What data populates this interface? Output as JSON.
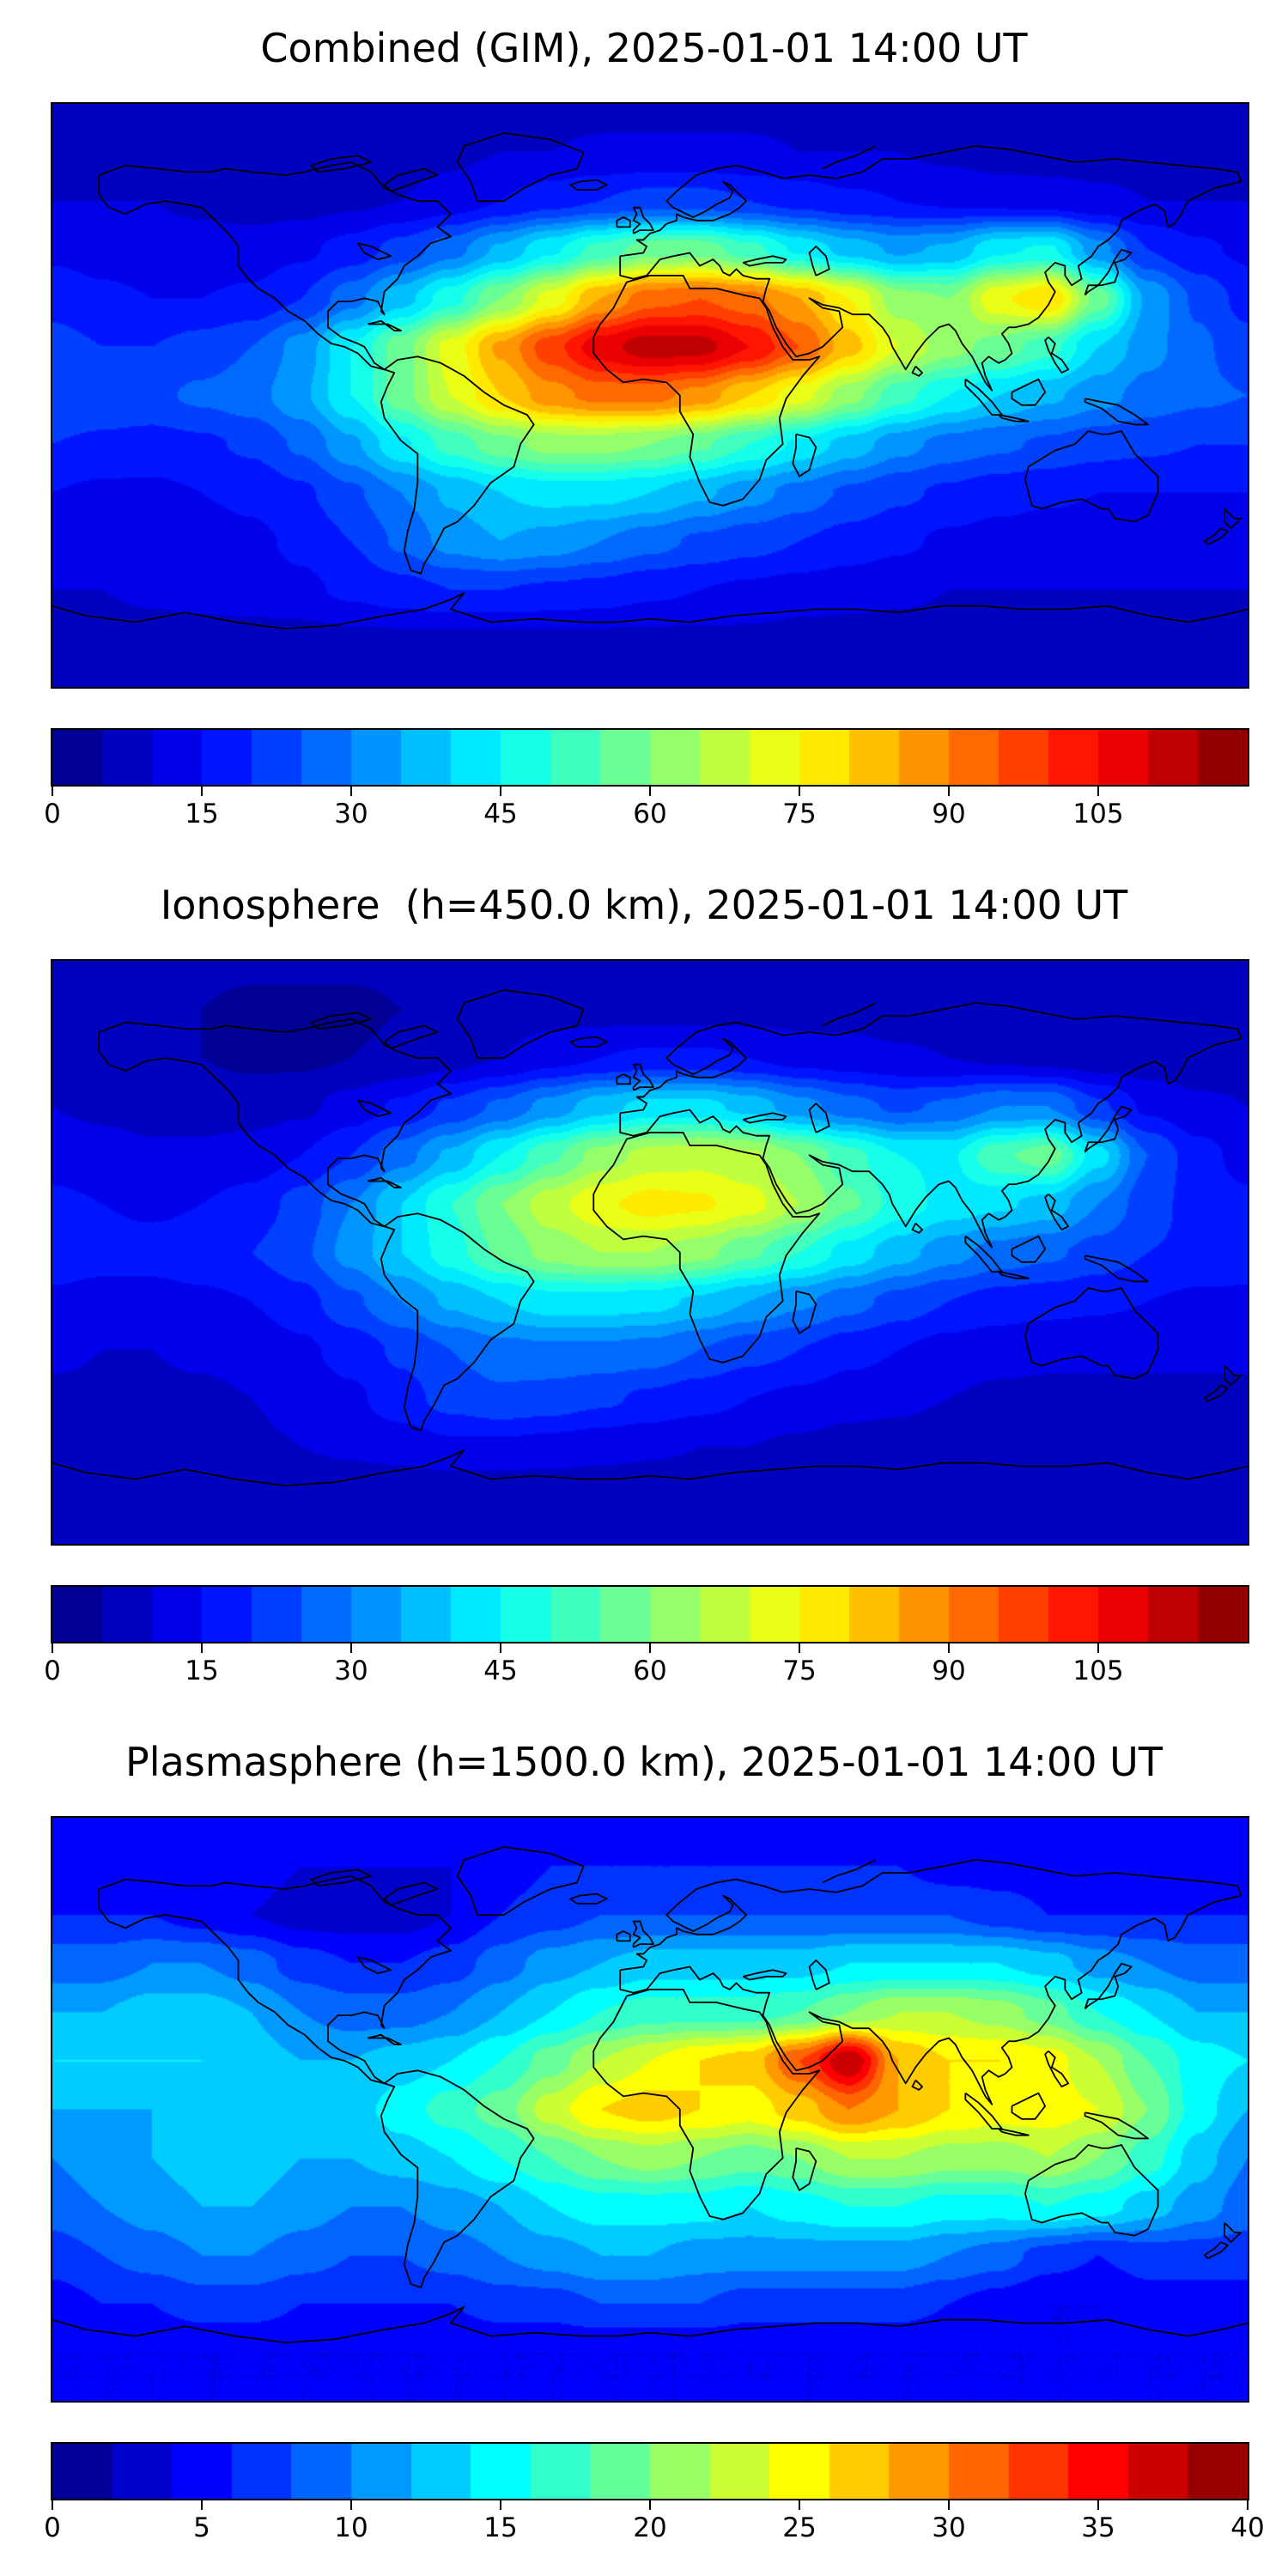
{
  "figure": {
    "background": "#ffffff",
    "text_color": "#000000",
    "frame_color": "#000000"
  },
  "chart_data": [
    {
      "type": "heatmap",
      "title": "Combined (GIM), 2025-01-01 14:00 UT",
      "xlabel": "",
      "ylabel": "",
      "projection": "equirectangular",
      "colormap": "jet",
      "grid": false,
      "vmin": 0,
      "vmax": 120,
      "level_step": 5,
      "colorbar_ticks": [
        0,
        15,
        30,
        45,
        60,
        75,
        90,
        105
      ],
      "lon_range": [
        -180,
        180
      ],
      "lat_range": [
        -90,
        90
      ],
      "lons": [
        -180,
        -165,
        -150,
        -135,
        -120,
        -105,
        -90,
        -75,
        -60,
        -45,
        -30,
        -15,
        0,
        15,
        30,
        45,
        60,
        75,
        90,
        105,
        120,
        135,
        150,
        165,
        180
      ],
      "lats": [
        90,
        75,
        60,
        45,
        30,
        15,
        0,
        -15,
        -30,
        -45,
        -60,
        -75,
        -90
      ],
      "values": [
        [
          8,
          8,
          8,
          8,
          8,
          8,
          8,
          8,
          8,
          8,
          8,
          8,
          8,
          8,
          8,
          8,
          8,
          8,
          8,
          8,
          8,
          8,
          8,
          8,
          8
        ],
        [
          8,
          8,
          8,
          8,
          8,
          8,
          8,
          8,
          9,
          10,
          10,
          11,
          11,
          11,
          11,
          10,
          10,
          10,
          9,
          8,
          8,
          8,
          8,
          8,
          8
        ],
        [
          10,
          10,
          10,
          9,
          8,
          8,
          9,
          10,
          12,
          15,
          18,
          20,
          22,
          22,
          20,
          18,
          16,
          15,
          14,
          13,
          12,
          11,
          10,
          10,
          10
        ],
        [
          14,
          13,
          12,
          12,
          12,
          14,
          17,
          22,
          28,
          36,
          44,
          52,
          58,
          58,
          52,
          44,
          38,
          34,
          36,
          44,
          46,
          32,
          20,
          16,
          14
        ],
        [
          18,
          16,
          15,
          15,
          16,
          20,
          28,
          38,
          48,
          60,
          72,
          85,
          93,
          95,
          92,
          85,
          75,
          62,
          60,
          74,
          80,
          58,
          34,
          24,
          18
        ],
        [
          22,
          20,
          20,
          22,
          25,
          32,
          45,
          58,
          72,
          86,
          98,
          108,
          113,
          112,
          105,
          95,
          82,
          70,
          62,
          58,
          52,
          40,
          32,
          26,
          22
        ],
        [
          25,
          24,
          24,
          26,
          28,
          34,
          45,
          58,
          70,
          80,
          88,
          92,
          92,
          88,
          80,
          72,
          62,
          52,
          45,
          40,
          36,
          32,
          28,
          26,
          25
        ],
        [
          20,
          19,
          18,
          19,
          21,
          26,
          34,
          44,
          52,
          58,
          62,
          62,
          60,
          56,
          50,
          44,
          38,
          32,
          28,
          26,
          24,
          22,
          21,
          20,
          20
        ],
        [
          15,
          14,
          14,
          15,
          16,
          19,
          24,
          30,
          36,
          40,
          42,
          42,
          40,
          36,
          32,
          28,
          24,
          21,
          19,
          17,
          16,
          15,
          15,
          15,
          15
        ],
        [
          12,
          12,
          12,
          13,
          14,
          16,
          20,
          26,
          32,
          35,
          33,
          30,
          27,
          24,
          22,
          20,
          18,
          16,
          14,
          13,
          12,
          12,
          12,
          12,
          12
        ],
        [
          10,
          10,
          11,
          12,
          13,
          14,
          16,
          18,
          20,
          20,
          19,
          18,
          16,
          15,
          14,
          13,
          12,
          11,
          10,
          10,
          10,
          10,
          10,
          10,
          10
        ],
        [
          8,
          8,
          8,
          8,
          8,
          8,
          9,
          9,
          9,
          9,
          9,
          9,
          9,
          9,
          9,
          8,
          8,
          8,
          8,
          8,
          8,
          8,
          8,
          8,
          8
        ],
        [
          8,
          8,
          8,
          8,
          8,
          8,
          8,
          8,
          8,
          8,
          8,
          8,
          8,
          8,
          8,
          8,
          8,
          8,
          8,
          8,
          8,
          8,
          8,
          8,
          8
        ]
      ]
    },
    {
      "type": "heatmap",
      "title": "Ionosphere  (h=450.0 km), 2025-01-01 14:00 UT",
      "xlabel": "",
      "ylabel": "",
      "projection": "equirectangular",
      "colormap": "jet",
      "grid": false,
      "vmin": 0,
      "vmax": 120,
      "level_step": 5,
      "colorbar_ticks": [
        0,
        15,
        30,
        45,
        60,
        75,
        90,
        105
      ],
      "lon_range": [
        -180,
        180
      ],
      "lat_range": [
        -90,
        90
      ],
      "lons": [
        -180,
        -165,
        -150,
        -135,
        -120,
        -105,
        -90,
        -75,
        -60,
        -45,
        -30,
        -15,
        0,
        15,
        30,
        45,
        60,
        75,
        90,
        105,
        120,
        135,
        150,
        165,
        180
      ],
      "lats": [
        90,
        75,
        60,
        45,
        30,
        15,
        0,
        -15,
        -30,
        -45,
        -60,
        -75,
        -90
      ],
      "values": [
        [
          6,
          6,
          6,
          6,
          6,
          6,
          6,
          6,
          6,
          6,
          6,
          6,
          6,
          6,
          6,
          6,
          6,
          6,
          6,
          6,
          6,
          6,
          6,
          6,
          6
        ],
        [
          6,
          6,
          6,
          5,
          4,
          4,
          4,
          5,
          6,
          7,
          8,
          8,
          8,
          8,
          8,
          8,
          8,
          7,
          6,
          6,
          5,
          5,
          5,
          6,
          6
        ],
        [
          8,
          7,
          6,
          5,
          4,
          4,
          5,
          6,
          8,
          10,
          13,
          15,
          16,
          16,
          15,
          13,
          12,
          11,
          10,
          9,
          8,
          7,
          7,
          7,
          8
        ],
        [
          10,
          9,
          8,
          8,
          8,
          9,
          12,
          16,
          21,
          26,
          32,
          38,
          42,
          42,
          38,
          32,
          27,
          24,
          26,
          30,
          30,
          21,
          14,
          11,
          10
        ],
        [
          13,
          12,
          11,
          11,
          12,
          15,
          20,
          28,
          36,
          45,
          54,
          62,
          67,
          68,
          66,
          60,
          52,
          45,
          44,
          54,
          58,
          42,
          25,
          17,
          13
        ],
        [
          16,
          15,
          14,
          15,
          17,
          22,
          30,
          40,
          50,
          60,
          68,
          74,
          77,
          76,
          72,
          65,
          56,
          48,
          43,
          41,
          38,
          30,
          22,
          18,
          16
        ],
        [
          18,
          17,
          17,
          18,
          20,
          24,
          32,
          40,
          48,
          56,
          62,
          65,
          65,
          62,
          56,
          50,
          43,
          37,
          32,
          28,
          26,
          23,
          20,
          19,
          18
        ],
        [
          14,
          13,
          13,
          14,
          15,
          18,
          24,
          30,
          36,
          40,
          43,
          43,
          42,
          39,
          35,
          31,
          27,
          23,
          20,
          18,
          17,
          16,
          15,
          14,
          14
        ],
        [
          11,
          10,
          10,
          11,
          12,
          14,
          17,
          21,
          25,
          28,
          29,
          29,
          28,
          25,
          22,
          20,
          17,
          15,
          13,
          12,
          11,
          11,
          11,
          11,
          11
        ],
        [
          9,
          9,
          9,
          9,
          10,
          12,
          14,
          18,
          22,
          24,
          23,
          21,
          19,
          17,
          15,
          14,
          12,
          11,
          10,
          9,
          9,
          9,
          9,
          9,
          9
        ],
        [
          7,
          7,
          8,
          8,
          9,
          10,
          11,
          12,
          14,
          14,
          13,
          12,
          11,
          10,
          10,
          9,
          8,
          8,
          7,
          6,
          6,
          6,
          6,
          7,
          7
        ],
        [
          6,
          6,
          6,
          6,
          6,
          6,
          6,
          6,
          6,
          6,
          6,
          6,
          6,
          6,
          6,
          6,
          6,
          6,
          5,
          5,
          5,
          5,
          5,
          6,
          6
        ],
        [
          6,
          6,
          6,
          6,
          6,
          6,
          6,
          6,
          6,
          6,
          6,
          6,
          6,
          6,
          6,
          6,
          6,
          6,
          6,
          6,
          6,
          6,
          6,
          6,
          6
        ]
      ]
    },
    {
      "type": "heatmap",
      "title": "Plasmasphere (h=1500.0 km), 2025-01-01 14:00 UT",
      "xlabel": "",
      "ylabel": "",
      "projection": "equirectangular",
      "colormap": "jet",
      "grid": false,
      "vmin": 0,
      "vmax": 40,
      "level_step": 2,
      "colorbar_ticks": [
        0,
        5,
        10,
        15,
        20,
        25,
        30,
        35,
        40
      ],
      "lon_range": [
        -180,
        180
      ],
      "lat_range": [
        -90,
        90
      ],
      "lons": [
        -180,
        -165,
        -150,
        -135,
        -120,
        -105,
        -90,
        -75,
        -60,
        -45,
        -30,
        -15,
        0,
        15,
        30,
        45,
        60,
        75,
        90,
        105,
        120,
        135,
        150,
        165,
        180
      ],
      "lats": [
        90,
        75,
        60,
        45,
        30,
        15,
        0,
        -15,
        -30,
        -45,
        -60,
        -75,
        -90
      ],
      "values": [
        [
          5,
          5,
          5,
          5,
          5,
          5,
          5,
          5,
          5,
          5,
          5,
          5,
          5,
          5,
          5,
          5,
          5,
          5,
          5,
          5,
          5,
          5,
          5,
          5,
          5
        ],
        [
          5,
          5,
          5,
          5,
          5,
          4,
          4,
          4,
          4,
          5,
          6,
          6,
          6,
          6,
          6,
          6,
          6,
          6,
          5,
          5,
          5,
          5,
          5,
          5,
          5
        ],
        [
          6,
          6,
          6,
          5,
          4,
          3,
          3,
          3,
          4,
          6,
          7,
          8,
          8,
          8,
          8,
          8,
          8,
          8,
          8,
          7,
          6,
          6,
          6,
          6,
          6
        ],
        [
          9,
          9,
          10,
          10,
          9,
          7,
          6,
          6,
          7,
          9,
          11,
          12,
          13,
          13,
          13,
          13,
          14,
          14,
          14,
          14,
          13,
          11,
          10,
          9,
          9
        ],
        [
          12,
          12,
          13,
          13,
          12,
          10,
          9,
          9,
          10,
          12,
          14,
          16,
          17,
          17,
          17,
          18,
          20,
          22,
          22,
          21,
          19,
          16,
          14,
          12,
          12
        ],
        [
          14,
          14,
          14,
          14,
          13,
          12,
          12,
          13,
          14,
          16,
          19,
          22,
          24,
          26,
          27,
          32,
          38,
          28,
          26,
          26,
          25,
          22,
          18,
          15,
          14
        ],
        [
          12,
          12,
          12,
          12,
          12,
          12,
          13,
          15,
          17,
          19,
          23,
          26,
          27,
          26,
          25,
          27,
          30,
          28,
          26,
          25,
          25,
          24,
          20,
          15,
          12
        ],
        [
          10,
          11,
          12,
          13,
          13,
          12,
          12,
          13,
          14,
          16,
          18,
          20,
          21,
          20,
          19,
          20,
          22,
          22,
          21,
          21,
          22,
          20,
          17,
          13,
          10
        ],
        [
          9,
          10,
          11,
          12,
          12,
          11,
          10,
          10,
          11,
          12,
          14,
          15,
          15,
          15,
          14,
          15,
          16,
          16,
          15,
          15,
          16,
          15,
          13,
          11,
          9
        ],
        [
          7,
          8,
          9,
          10,
          10,
          9,
          8,
          8,
          9,
          10,
          11,
          12,
          12,
          11,
          11,
          11,
          11,
          11,
          10,
          9,
          7,
          6,
          7,
          7,
          7
        ],
        [
          5,
          6,
          6,
          7,
          7,
          6,
          6,
          6,
          6,
          7,
          7,
          8,
          8,
          8,
          7,
          7,
          7,
          7,
          6,
          5,
          4,
          4,
          5,
          5,
          5
        ],
        [
          4,
          4,
          4,
          4,
          4,
          4,
          4,
          4,
          4,
          4,
          4,
          4,
          4,
          4,
          4,
          4,
          4,
          4,
          4,
          4,
          4,
          4,
          4,
          4,
          4
        ],
        [
          4,
          4,
          4,
          4,
          4,
          4,
          4,
          4,
          4,
          4,
          4,
          4,
          4,
          4,
          4,
          4,
          4,
          4,
          4,
          4,
          4,
          4,
          4,
          4,
          4
        ]
      ]
    }
  ]
}
